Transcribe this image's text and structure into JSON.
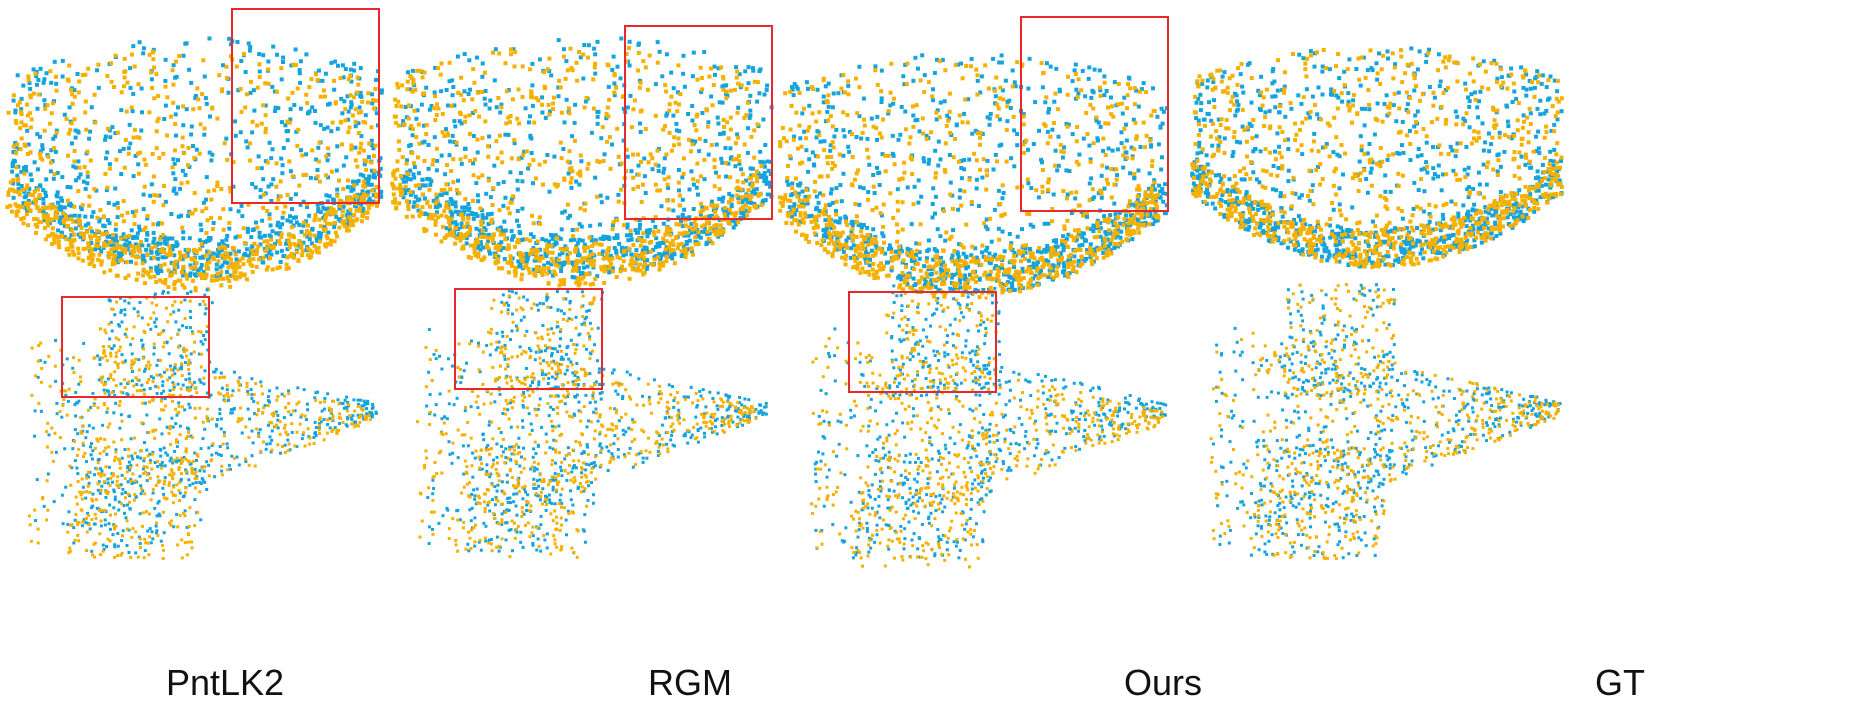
{
  "columns": [
    {
      "label": "PntLK2"
    },
    {
      "label": "RGM"
    },
    {
      "label": "Ours"
    },
    {
      "label": "GT"
    }
  ],
  "colors": {
    "source_points": "#f5b000",
    "target_points": "#15a3dc",
    "highlight_box": "#e8282a"
  }
}
